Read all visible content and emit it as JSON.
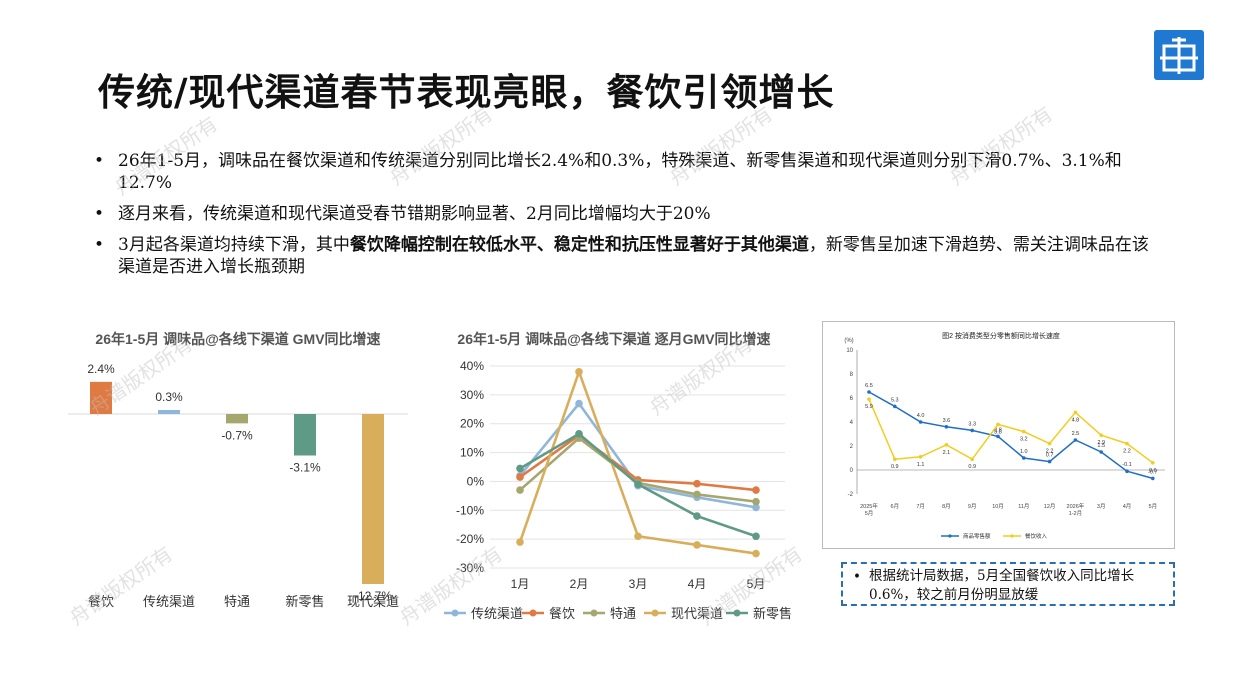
{
  "slide": {
    "title": "传统/现代渠道春节表现亮眼，餐饮引领增长",
    "bullets": [
      {
        "text": "26年1-5月，调味品在餐饮渠道和传统渠道分别同比增长2.4%和0.3%，特殊渠道、新零售渠道和现代渠道则分别下滑0.7%、3.1%和12.7%"
      },
      {
        "text": "逐月来看，传统渠道和现代渠道受春节错期影响显著、2月同比增幅均大于20%"
      },
      {
        "pre": "3月起各渠道均持续下滑，其中",
        "bold": "餐饮降幅控制在较低水平、稳定性和抗压性显著好于其他渠道",
        "post": "，新零售呈加速下滑趋势、需关注调味品在该渠道是否进入增长瓶颈期"
      }
    ],
    "note": "根据统计局数据，5月全国餐饮收入同比增长0.6%，较之前月份明显放缓",
    "watermark": "舟谱版权所有",
    "bullet_symbol": "•"
  },
  "colors": {
    "blue": "#8fb6db",
    "orange": "#e07a43",
    "olive": "#a6a66f",
    "gold": "#d9ae5b",
    "teal": "#5f9a86",
    "retail_blue": "#1f6fc5",
    "catering_yellow": "#f2cd1e"
  },
  "chart_data": [
    {
      "type": "bar",
      "title": "26年1-5月 调味品@各线下渠道 GMV同比增速",
      "categories": [
        "餐饮",
        "传统渠道",
        "特通",
        "新零售",
        "现代渠道"
      ],
      "values": [
        2.4,
        0.3,
        -0.7,
        -3.1,
        -12.7
      ],
      "value_labels": [
        "2.4%",
        "0.3%",
        "-0.7%",
        "-3.1%",
        "-12.7%"
      ],
      "bar_colors": [
        "#e07a43",
        "#8fb6db",
        "#a6a66f",
        "#5f9a86",
        "#d9ae5b"
      ],
      "ylim": [
        -12.7,
        2.4
      ]
    },
    {
      "type": "line",
      "title": "26年1-5月 调味品@各线下渠道 逐月GMV同比增速",
      "x": [
        "1月",
        "2月",
        "3月",
        "4月",
        "5月"
      ],
      "yticks": [
        "40%",
        "30%",
        "20%",
        "10%",
        "0%",
        "-10%",
        "-20%",
        "-30%"
      ],
      "ylim": [
        -30,
        40
      ],
      "grid": true,
      "legend": "bottom",
      "series": [
        {
          "name": "传统渠道",
          "color": "#8fb6db",
          "values": [
            2,
            27,
            -1.5,
            -5.5,
            -9
          ]
        },
        {
          "name": "餐饮",
          "color": "#e07a43",
          "values": [
            1.5,
            16,
            0.5,
            -0.8,
            -3
          ]
        },
        {
          "name": "特通",
          "color": "#a6a66f",
          "values": [
            -3,
            15,
            -0.5,
            -4.5,
            -7
          ]
        },
        {
          "name": "现代渠道",
          "color": "#d9ae5b",
          "values": [
            -21,
            38,
            -19,
            -22,
            -25
          ]
        },
        {
          "name": "新零售",
          "color": "#5f9a86",
          "values": [
            4.5,
            16.5,
            -1,
            -12,
            -19
          ]
        }
      ]
    },
    {
      "type": "line",
      "title": "图2 按消费类型分零售额同比增长速度",
      "unit": "(%)",
      "x": [
        "2025年\n5月",
        "6月",
        "7月",
        "8月",
        "9月",
        "10月",
        "11月",
        "12月",
        "2026年\n1-2月",
        "3月",
        "4月",
        "5月"
      ],
      "yticks": [
        "10",
        "8",
        "6",
        "4",
        "2",
        "0",
        "-2"
      ],
      "ylim": [
        -2,
        10
      ],
      "series": [
        {
          "name": "商品零售额",
          "color": "#1f6fc5",
          "values": [
            6.5,
            5.3,
            4.0,
            3.6,
            3.3,
            2.8,
            1.0,
            0.7,
            2.5,
            1.5,
            -0.1,
            -0.7
          ],
          "labels": [
            "6.5",
            "5.3",
            "4.0",
            "3.6",
            "3.3",
            "2.8",
            "1.0",
            "0.7",
            "2.5",
            "1.5",
            "-0.1",
            "-0.7"
          ]
        },
        {
          "name": "餐饮收入",
          "color": "#f2cd1e",
          "values": [
            5.9,
            0.9,
            1.1,
            2.1,
            0.9,
            3.8,
            3.2,
            2.2,
            4.8,
            2.9,
            2.2,
            0.6
          ],
          "labels": [
            "5.9",
            "0.9",
            "1.1",
            "2.1",
            "0.9",
            "3.8",
            "3.2",
            "2.2",
            "4.8",
            "2.9",
            "2.2",
            "0.6"
          ]
        }
      ]
    }
  ]
}
